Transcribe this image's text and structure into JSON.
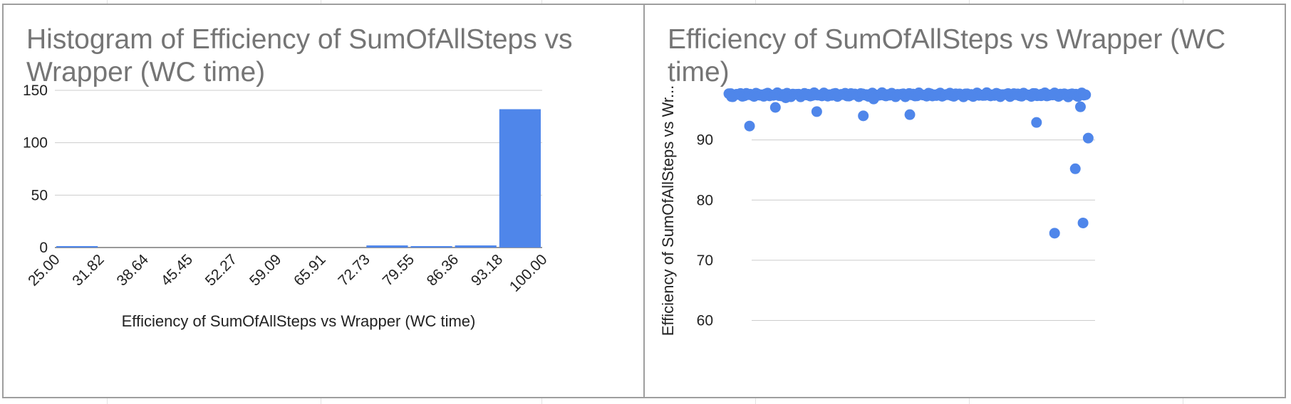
{
  "colors": {
    "series": "#4f86ea",
    "grid": "#cccccc",
    "baseline": "#333333",
    "title": "#757575",
    "border": "#9e9e9e"
  },
  "chart_data": [
    {
      "type": "bar",
      "title": "Histogram of Efficiency of SumOfAllSteps vs Wrapper (WC time)",
      "xlabel": "Efficiency of SumOfAllSteps vs Wrapper (WC time)",
      "ylabel": "",
      "y_ticks": [
        "150",
        "100",
        "50",
        "0"
      ],
      "ylim": [
        0,
        150
      ],
      "x_ticks": [
        "25.00",
        "31.82",
        "38.64",
        "45.45",
        "52.27",
        "59.09",
        "65.91",
        "72.73",
        "79.55",
        "86.36",
        "93.18",
        "100.00"
      ],
      "bins": [
        {
          "from": 25.0,
          "to": 31.82,
          "count": 1
        },
        {
          "from": 31.82,
          "to": 38.64,
          "count": 0
        },
        {
          "from": 38.64,
          "to": 45.45,
          "count": 0
        },
        {
          "from": 45.45,
          "to": 52.27,
          "count": 0
        },
        {
          "from": 52.27,
          "to": 59.09,
          "count": 0
        },
        {
          "from": 59.09,
          "to": 65.91,
          "count": 0
        },
        {
          "from": 65.91,
          "to": 72.73,
          "count": 0
        },
        {
          "from": 72.73,
          "to": 79.55,
          "count": 2
        },
        {
          "from": 79.55,
          "to": 86.36,
          "count": 1
        },
        {
          "from": 86.36,
          "to": 93.18,
          "count": 2
        },
        {
          "from": 93.18,
          "to": 100.0,
          "count": 132
        }
      ],
      "grid": true,
      "legend": "none"
    },
    {
      "type": "scatter",
      "title": "Efficiency of SumOfAllSteps vs Wrapper (WC time)",
      "xlabel": "",
      "ylabel": "Efficiency of SumOfAllSteps vs Wr...",
      "y_ticks": [
        "90",
        "80",
        "70",
        "60"
      ],
      "ylim": [
        59,
        98
      ],
      "xlim": [
        0,
        140
      ],
      "dense_band": {
        "y": 97.5,
        "x_from": 0,
        "x_to": 138
      },
      "points": [
        {
          "x": 1,
          "y": 97.2
        },
        {
          "x": 8,
          "y": 92.3
        },
        {
          "x": 18,
          "y": 95.4
        },
        {
          "x": 22,
          "y": 97.0
        },
        {
          "x": 34,
          "y": 94.7
        },
        {
          "x": 52,
          "y": 94.0
        },
        {
          "x": 56,
          "y": 96.8
        },
        {
          "x": 70,
          "y": 94.2
        },
        {
          "x": 119,
          "y": 92.9
        },
        {
          "x": 121,
          "y": 97.6
        },
        {
          "x": 126,
          "y": 74.5
        },
        {
          "x": 134,
          "y": 85.2
        },
        {
          "x": 136,
          "y": 95.5
        },
        {
          "x": 137,
          "y": 76.2
        },
        {
          "x": 139,
          "y": 90.3
        }
      ],
      "grid": true,
      "legend": "none"
    }
  ]
}
